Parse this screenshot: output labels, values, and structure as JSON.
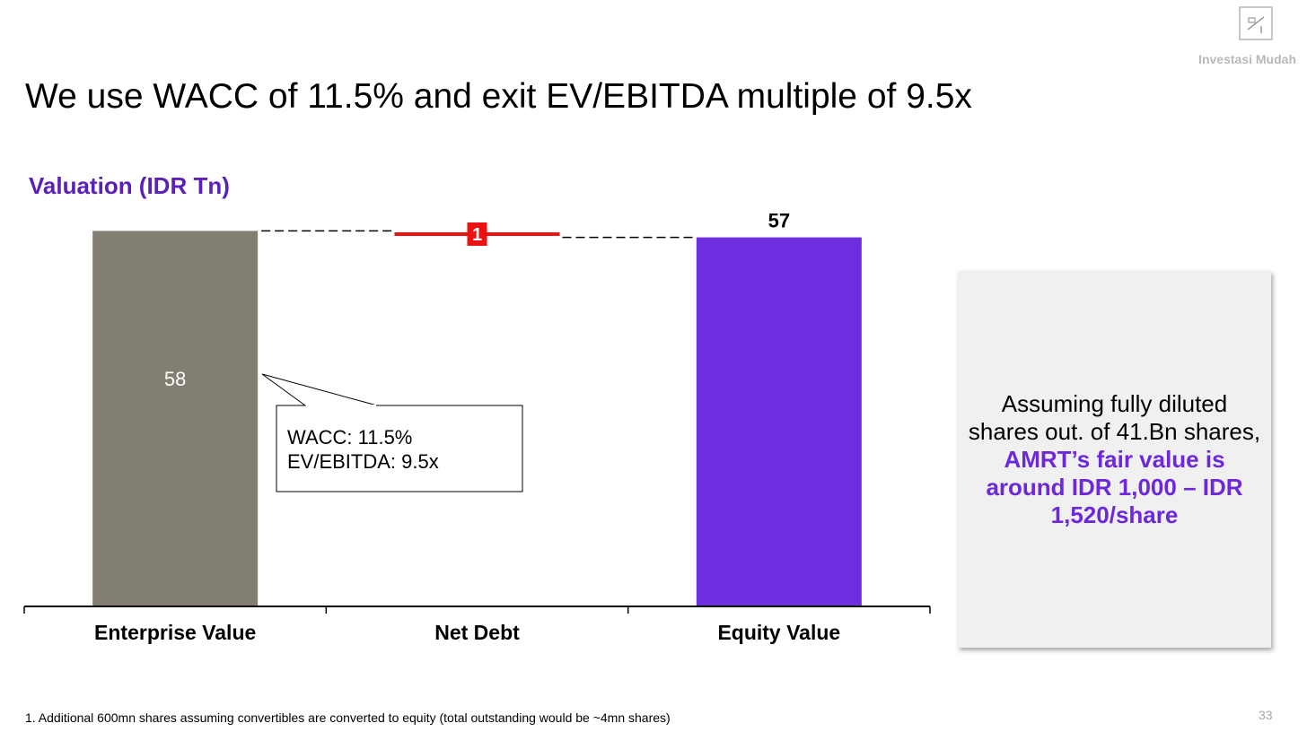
{
  "brand": {
    "name": "Investasi Mudah",
    "logo_icon": "logo-mark-icon"
  },
  "slide": {
    "title": "We use WACC of 11.5% and exit EV/EBITDA multiple of 9.5x",
    "page_number": "33",
    "footnote": "1. Additional 600mn shares assuming convertibles are converted to equity (total outstanding would be ~4mn shares)"
  },
  "chart_data": {
    "type": "bar",
    "subtype": "waterfall",
    "title": "Valuation (IDR Tn)",
    "categories": [
      "Enterprise Value",
      "Net Debt",
      "Equity Value"
    ],
    "series": [
      {
        "values": [
          58,
          1,
          57
        ],
        "labels": [
          "58",
          "1",
          "57"
        ]
      }
    ],
    "ylim": [
      0,
      58
    ],
    "colors": {
      "enterprise": "#827f72",
      "net_debt": "#ee1111",
      "equity": "#6d2ee0"
    },
    "grid": false,
    "annotation": {
      "lines": [
        "WACC: 11.5%",
        "EV/EBITDA: 9.5x"
      ]
    }
  },
  "side_note": {
    "plain": "Assuming fully diluted shares out. of 41.Bn shares, ",
    "highlight": "AMRT’s fair value is around IDR 1,000 – IDR 1,520/share"
  }
}
